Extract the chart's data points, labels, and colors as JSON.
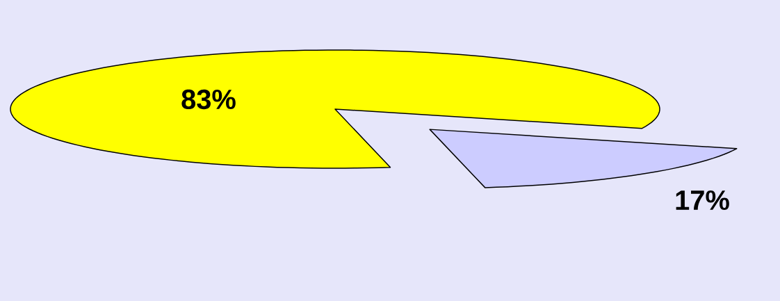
{
  "chart_data": {
    "type": "pie",
    "categories": [
      null,
      null
    ],
    "values": [
      83,
      17
    ],
    "colors": [
      "#ffff00",
      "#ccccff"
    ],
    "value_labels": [
      "83%",
      "17%"
    ]
  }
}
